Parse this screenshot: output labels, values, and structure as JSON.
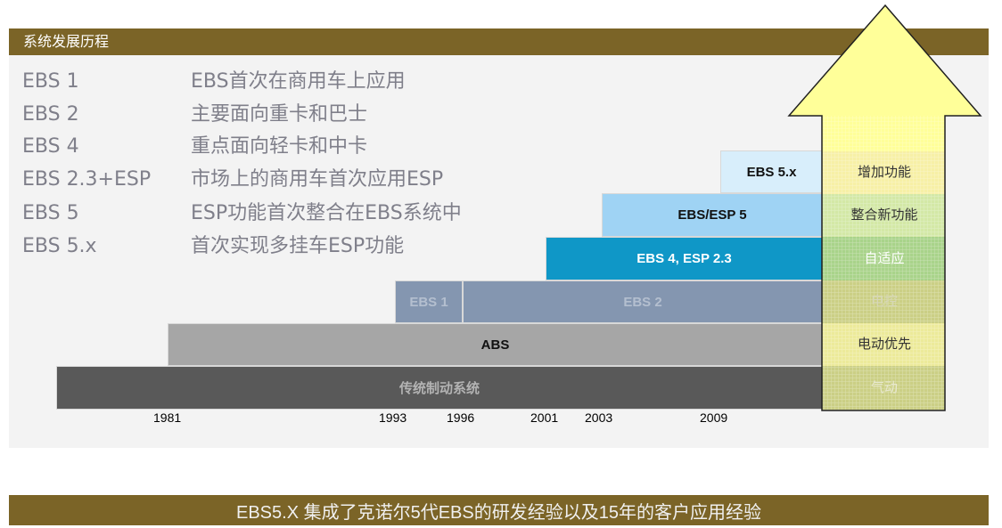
{
  "header": {
    "title": "系统发展历程"
  },
  "rows": [
    {
      "code": "EBS 1",
      "desc": "EBS首次在商用车上应用"
    },
    {
      "code": "EBS 2",
      "desc": "主要面向重卡和巴士"
    },
    {
      "code": "EBS 4",
      "desc": "重点面向轻卡和中卡"
    },
    {
      "code": "EBS 2.3+ESP",
      "desc": "市场上的商用车首次应用ESP"
    },
    {
      "code": "EBS 5",
      "desc": "ESP功能首次整合在EBS系统中"
    },
    {
      "code": "EBS 5.x",
      "desc": "首次实现多挂车ESP功能"
    }
  ],
  "steps": [
    {
      "label": "传统制动系统",
      "color": "#595959",
      "text_color": "#b3b3b3"
    },
    {
      "label": "ABS",
      "color": "#a6a6a6",
      "text_color": "#111111"
    },
    {
      "label": "EBS 1",
      "color": "#8496b0",
      "text_color": "#b4bfcf"
    },
    {
      "label": "EBS 2",
      "color": "#8496b0",
      "text_color": "#b4bfcf"
    },
    {
      "label": "EBS 4, ESP 2.3",
      "color": "#0f97c7",
      "text_color": "#ffffff"
    },
    {
      "label": "EBS/ESP 5",
      "color": "#9fd3f4",
      "text_color": "#111111"
    },
    {
      "label": "EBS 5.x",
      "color": "#d8eefb",
      "text_color": "#111111"
    }
  ],
  "arrow": {
    "colors": {
      "head": "#ffff99",
      "band_light": "#f7f0a6",
      "band_green": "#d3e8a6",
      "band_green_strong": "#a9d38a",
      "band_olive": "#cbcf85",
      "outline": "#202020"
    },
    "labels": [
      {
        "text": "增加功能",
        "color": "#333333"
      },
      {
        "text": "整合新功能",
        "color": "#333333"
      },
      {
        "text": "自适应",
        "color": "#ffffff"
      },
      {
        "text": "电控",
        "color": "#d7d7b8"
      },
      {
        "text": "电动优先",
        "color": "#333333"
      },
      {
        "text": "气动",
        "color": "#e8e8cf"
      }
    ]
  },
  "timeline": {
    "years": [
      "1981",
      "1993",
      "1996",
      "2001",
      "2003",
      "2009"
    ]
  },
  "footer": {
    "text": "EBS5.X 集成了克诺尔5代EBS的研发经验以及15年的客户应用经验"
  }
}
